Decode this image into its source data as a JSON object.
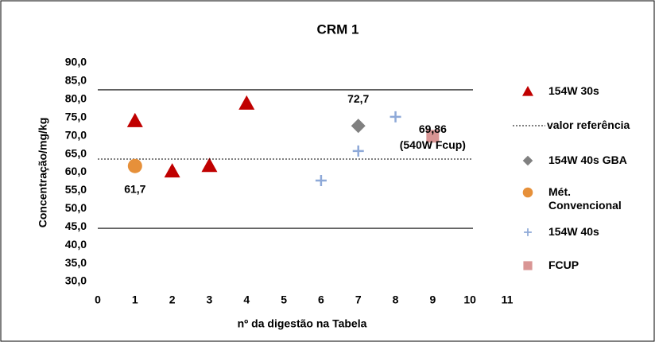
{
  "chart_data": {
    "type": "scatter",
    "title": "CRM 1",
    "x_label": "nº da digestão na Tabela",
    "y_label": "Concentração/mg/kg",
    "xlim": [
      0,
      11
    ],
    "xticks": [
      0,
      1,
      2,
      3,
      4,
      5,
      6,
      7,
      8,
      9,
      10,
      11
    ],
    "ylim": [
      30,
      90
    ],
    "yticks": [
      {
        "value": 30,
        "label": "30,0"
      },
      {
        "value": 35,
        "label": "35,0"
      },
      {
        "value": 40,
        "label": "40,0"
      },
      {
        "value": 45,
        "label": "45,0"
      },
      {
        "value": 50,
        "label": "50,0"
      },
      {
        "value": 55,
        "label": "55,0"
      },
      {
        "value": 60,
        "label": "60,0"
      },
      {
        "value": 65,
        "label": "65,0"
      },
      {
        "value": 70,
        "label": "70,0"
      },
      {
        "value": 75,
        "label": "75,0"
      },
      {
        "value": 80,
        "label": "80,0"
      },
      {
        "value": 85,
        "label": "85,0"
      },
      {
        "value": 90,
        "label": "90,0"
      }
    ],
    "limit_lines": [
      82.6,
      44.6
    ],
    "series": [
      {
        "name": "154W 30s",
        "marker": "triangle",
        "color": "#c00000",
        "x": [
          1,
          2,
          3,
          4
        ],
        "values": [
          74.1,
          60.3,
          61.8,
          78.9
        ]
      },
      {
        "name": "valor referência",
        "marker": "hline",
        "color": "#000000",
        "values": [
          63.6
        ]
      },
      {
        "name": "154W 40s GBA",
        "marker": "diamond",
        "color": "#808080",
        "x": [
          7
        ],
        "values": [
          72.7
        ],
        "value_labels": [
          "72,7"
        ]
      },
      {
        "name": "Mét. Convencional",
        "marker": "circle",
        "color": "#e6903a",
        "x": [
          1
        ],
        "values": [
          61.7
        ],
        "value_labels": [
          "61,7"
        ]
      },
      {
        "name": "154W 40s",
        "marker": "plus",
        "color": "#8ea9d8",
        "x": [
          6,
          7,
          8
        ],
        "values": [
          57.7,
          65.8,
          75.2
        ]
      },
      {
        "name": "FCUP",
        "marker": "square",
        "color": "#d99594",
        "x": [
          9
        ],
        "values": [
          69.86
        ],
        "value_labels": [
          "69,86"
        ]
      }
    ],
    "annotation": "(540W Fcup)"
  }
}
